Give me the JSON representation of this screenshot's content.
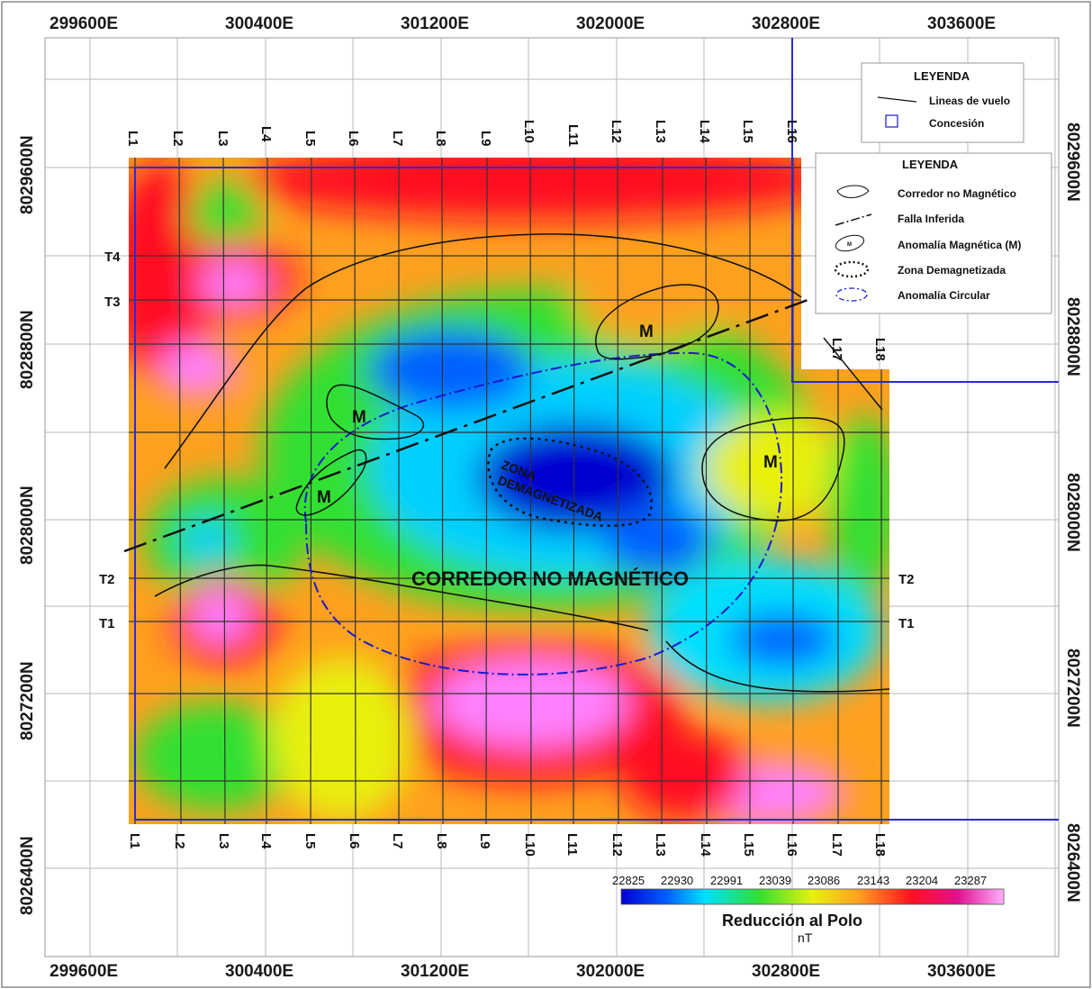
{
  "map": {
    "easting_labels": [
      "299600E",
      "300400E",
      "301200E",
      "302000E",
      "302800E",
      "303600E"
    ],
    "northing_labels": [
      "8029600N",
      "8028800N",
      "8028000N",
      "8027200N",
      "8026400N"
    ],
    "flight_lines": [
      "L1",
      "L2",
      "L3",
      "L4",
      "L5",
      "L6",
      "L7",
      "L8",
      "L9",
      "L10",
      "L11",
      "L12",
      "L13",
      "L14",
      "L15",
      "L16",
      "L17",
      "L18"
    ],
    "tie_lines": [
      "T1",
      "T2",
      "T3",
      "T4"
    ],
    "annotations": {
      "magnetic": "M",
      "corridor": "CORREDOR NO MAGNÉTICO",
      "zone_line1": "ZONA",
      "zone_line2": "DEMAGNETIZADA"
    },
    "legend1": {
      "title": "LEYENDA",
      "items": [
        "Lineas de vuelo",
        "Concesión"
      ]
    },
    "legend2": {
      "title": "LEYENDA",
      "items": [
        "Corredor no Magnético",
        "Falla Inferida",
        "Anomalía Magnética (M)",
        "Zona Demagnetizada",
        "Anomalía Circular"
      ],
      "symbol_letter": "M"
    },
    "colorbar": {
      "title": "Reducción al Polo",
      "unit": "nT",
      "ticks": [
        "22825",
        "22930",
        "22991",
        "23039",
        "23086",
        "23143",
        "23204",
        "23287"
      ]
    },
    "colors": {
      "low": "#0000d0",
      "mid": "#30e030",
      "high": "#ff1020",
      "peak": "#ff80ff",
      "concession": "#2a2ad8"
    }
  }
}
